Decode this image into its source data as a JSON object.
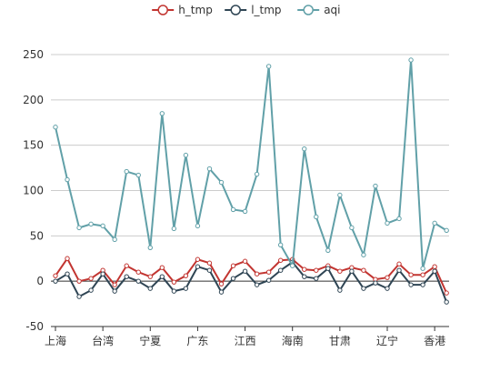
{
  "chart_data": {
    "type": "line",
    "title": "",
    "xlabel": "",
    "ylabel": "",
    "ylim": [
      -50,
      250
    ],
    "yticks": [
      -50,
      0,
      50,
      100,
      150,
      200,
      250
    ],
    "grid": true,
    "legend_position": "top-center",
    "x_tick_labels": [
      "上海",
      "台湾",
      "宁夏",
      "广东",
      "江西",
      "海南",
      "甘肃",
      "辽宁",
      "香港"
    ],
    "categories": [
      "上海",
      "",
      "",
      "",
      "台湾",
      "",
      "",
      "",
      "宁夏",
      "",
      "",
      "",
      "广东",
      "",
      "",
      "",
      "江西",
      "",
      "",
      "",
      "海南",
      "",
      "",
      "",
      "甘肃",
      "",
      "",
      "",
      "辽宁",
      "",
      "",
      "",
      "香港",
      ""
    ],
    "series": [
      {
        "name": "h_tmp",
        "color": "#c23531",
        "values": [
          6,
          25,
          0,
          3,
          12,
          -4,
          17,
          10,
          5,
          15,
          -1,
          6,
          24,
          20,
          -3,
          17,
          22,
          8,
          10,
          23,
          24,
          13,
          12,
          17,
          11,
          15,
          12,
          2,
          4,
          19,
          7,
          7,
          16,
          -13
        ]
      },
      {
        "name": "l_tmp",
        "color": "#2f4554",
        "values": [
          0,
          8,
          -17,
          -10,
          8,
          -11,
          5,
          0,
          -8,
          5,
          -11,
          -8,
          16,
          12,
          -12,
          3,
          11,
          -4,
          1,
          12,
          21,
          5,
          3,
          14,
          -10,
          11,
          -8,
          -2,
          -8,
          12,
          -4,
          -4,
          11,
          -23
        ]
      },
      {
        "name": "aqi",
        "color": "#61a0a8",
        "values": [
          170,
          112,
          59,
          63,
          61,
          46,
          121,
          117,
          37,
          185,
          58,
          139,
          61,
          124,
          109,
          79,
          77,
          118,
          237,
          40,
          17,
          146,
          71,
          34,
          95,
          59,
          29,
          105,
          64,
          69,
          244,
          14,
          64,
          56
        ]
      }
    ]
  }
}
